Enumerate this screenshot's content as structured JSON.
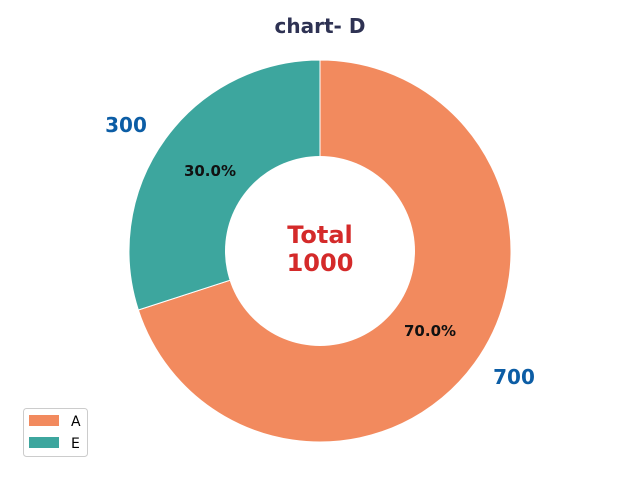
{
  "chart_data": {
    "type": "pie",
    "subtype": "donut",
    "title": "chart- D",
    "categories": [
      "A",
      "E"
    ],
    "values": [
      700,
      300
    ],
    "percent_labels": [
      "70.0%",
      "30.0%"
    ],
    "value_labels": [
      "700",
      "300"
    ],
    "colors": [
      "#f28a5e",
      "#3da69e"
    ],
    "center_label": {
      "line1": "Total",
      "line2": "1000",
      "color": "#d42a2a"
    },
    "start_angle_deg": 90,
    "direction": "clockwise",
    "legend": {
      "placement": "lower-left",
      "entries": [
        "A",
        "E"
      ]
    },
    "title_color": "#2e3253",
    "value_label_color": "#0c5da5",
    "percent_label_color": "#111111"
  }
}
